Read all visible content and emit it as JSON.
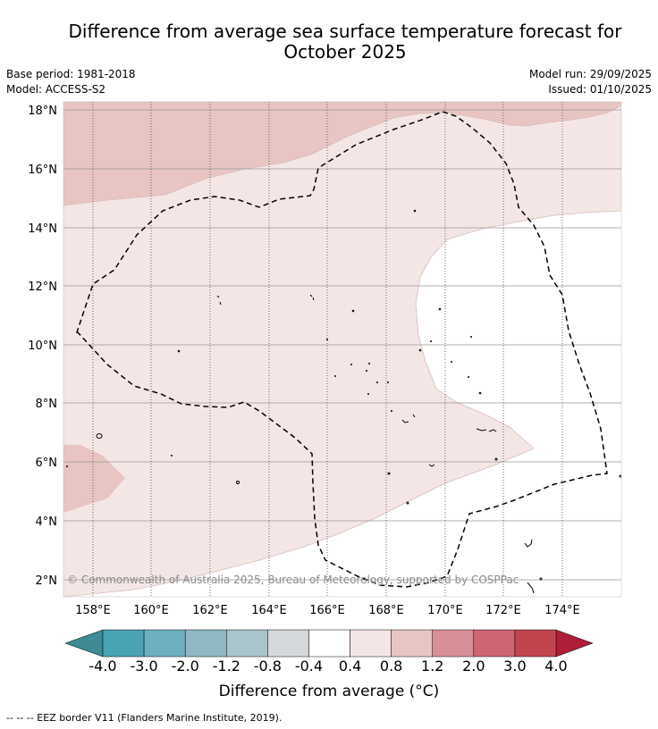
{
  "header": {
    "title_line1": "Difference from average sea surface temperature forecast for",
    "title_line2": "October 2025",
    "base_period": "Base period: 1981-2018",
    "model": "Model: ACCESS-S2",
    "model_run": "Model run: 29/09/2025",
    "issued": "Issued: 01/10/2025"
  },
  "map": {
    "lat_labels": [
      "18°N",
      "16°N",
      "14°N",
      "12°N",
      "10°N",
      "8°N",
      "6°N",
      "4°N",
      "2°N"
    ],
    "lon_labels": [
      "158°E",
      "160°E",
      "162°E",
      "164°E",
      "166°E",
      "168°E",
      "170°E",
      "172°E",
      "174°E"
    ],
    "copyright": "© Commonwealth of Australia 2025, Bureau of Meteorology, supported by COSPPac",
    "region_colors": {
      "0.4_0.8": "#f4e6e5",
      "0.8_1.2": "#e8c5c2",
      "-0.4_0.4": "#ffffff"
    }
  },
  "colorbar": {
    "labels": [
      "-4.0",
      "-3.0",
      "-2.0",
      "-1.2",
      "-0.8",
      "-0.4",
      "0.4",
      "0.8",
      "1.2",
      "2.0",
      "3.0",
      "4.0"
    ],
    "colors": [
      "#3e8a95",
      "#4aa3b4",
      "#6cb0c0",
      "#8eb8c4",
      "#a9c5cb",
      "#d2d8dc",
      "#ffffff",
      "#f4e6e5",
      "#e8c5c2",
      "#d98f97",
      "#cd6572",
      "#c1444f",
      "#b01d38"
    ],
    "title": "Difference from average (°C)"
  },
  "footer": {
    "legend": "--  --  -- EEZ border V11 (Flanders Marine Institute, 2019)."
  }
}
